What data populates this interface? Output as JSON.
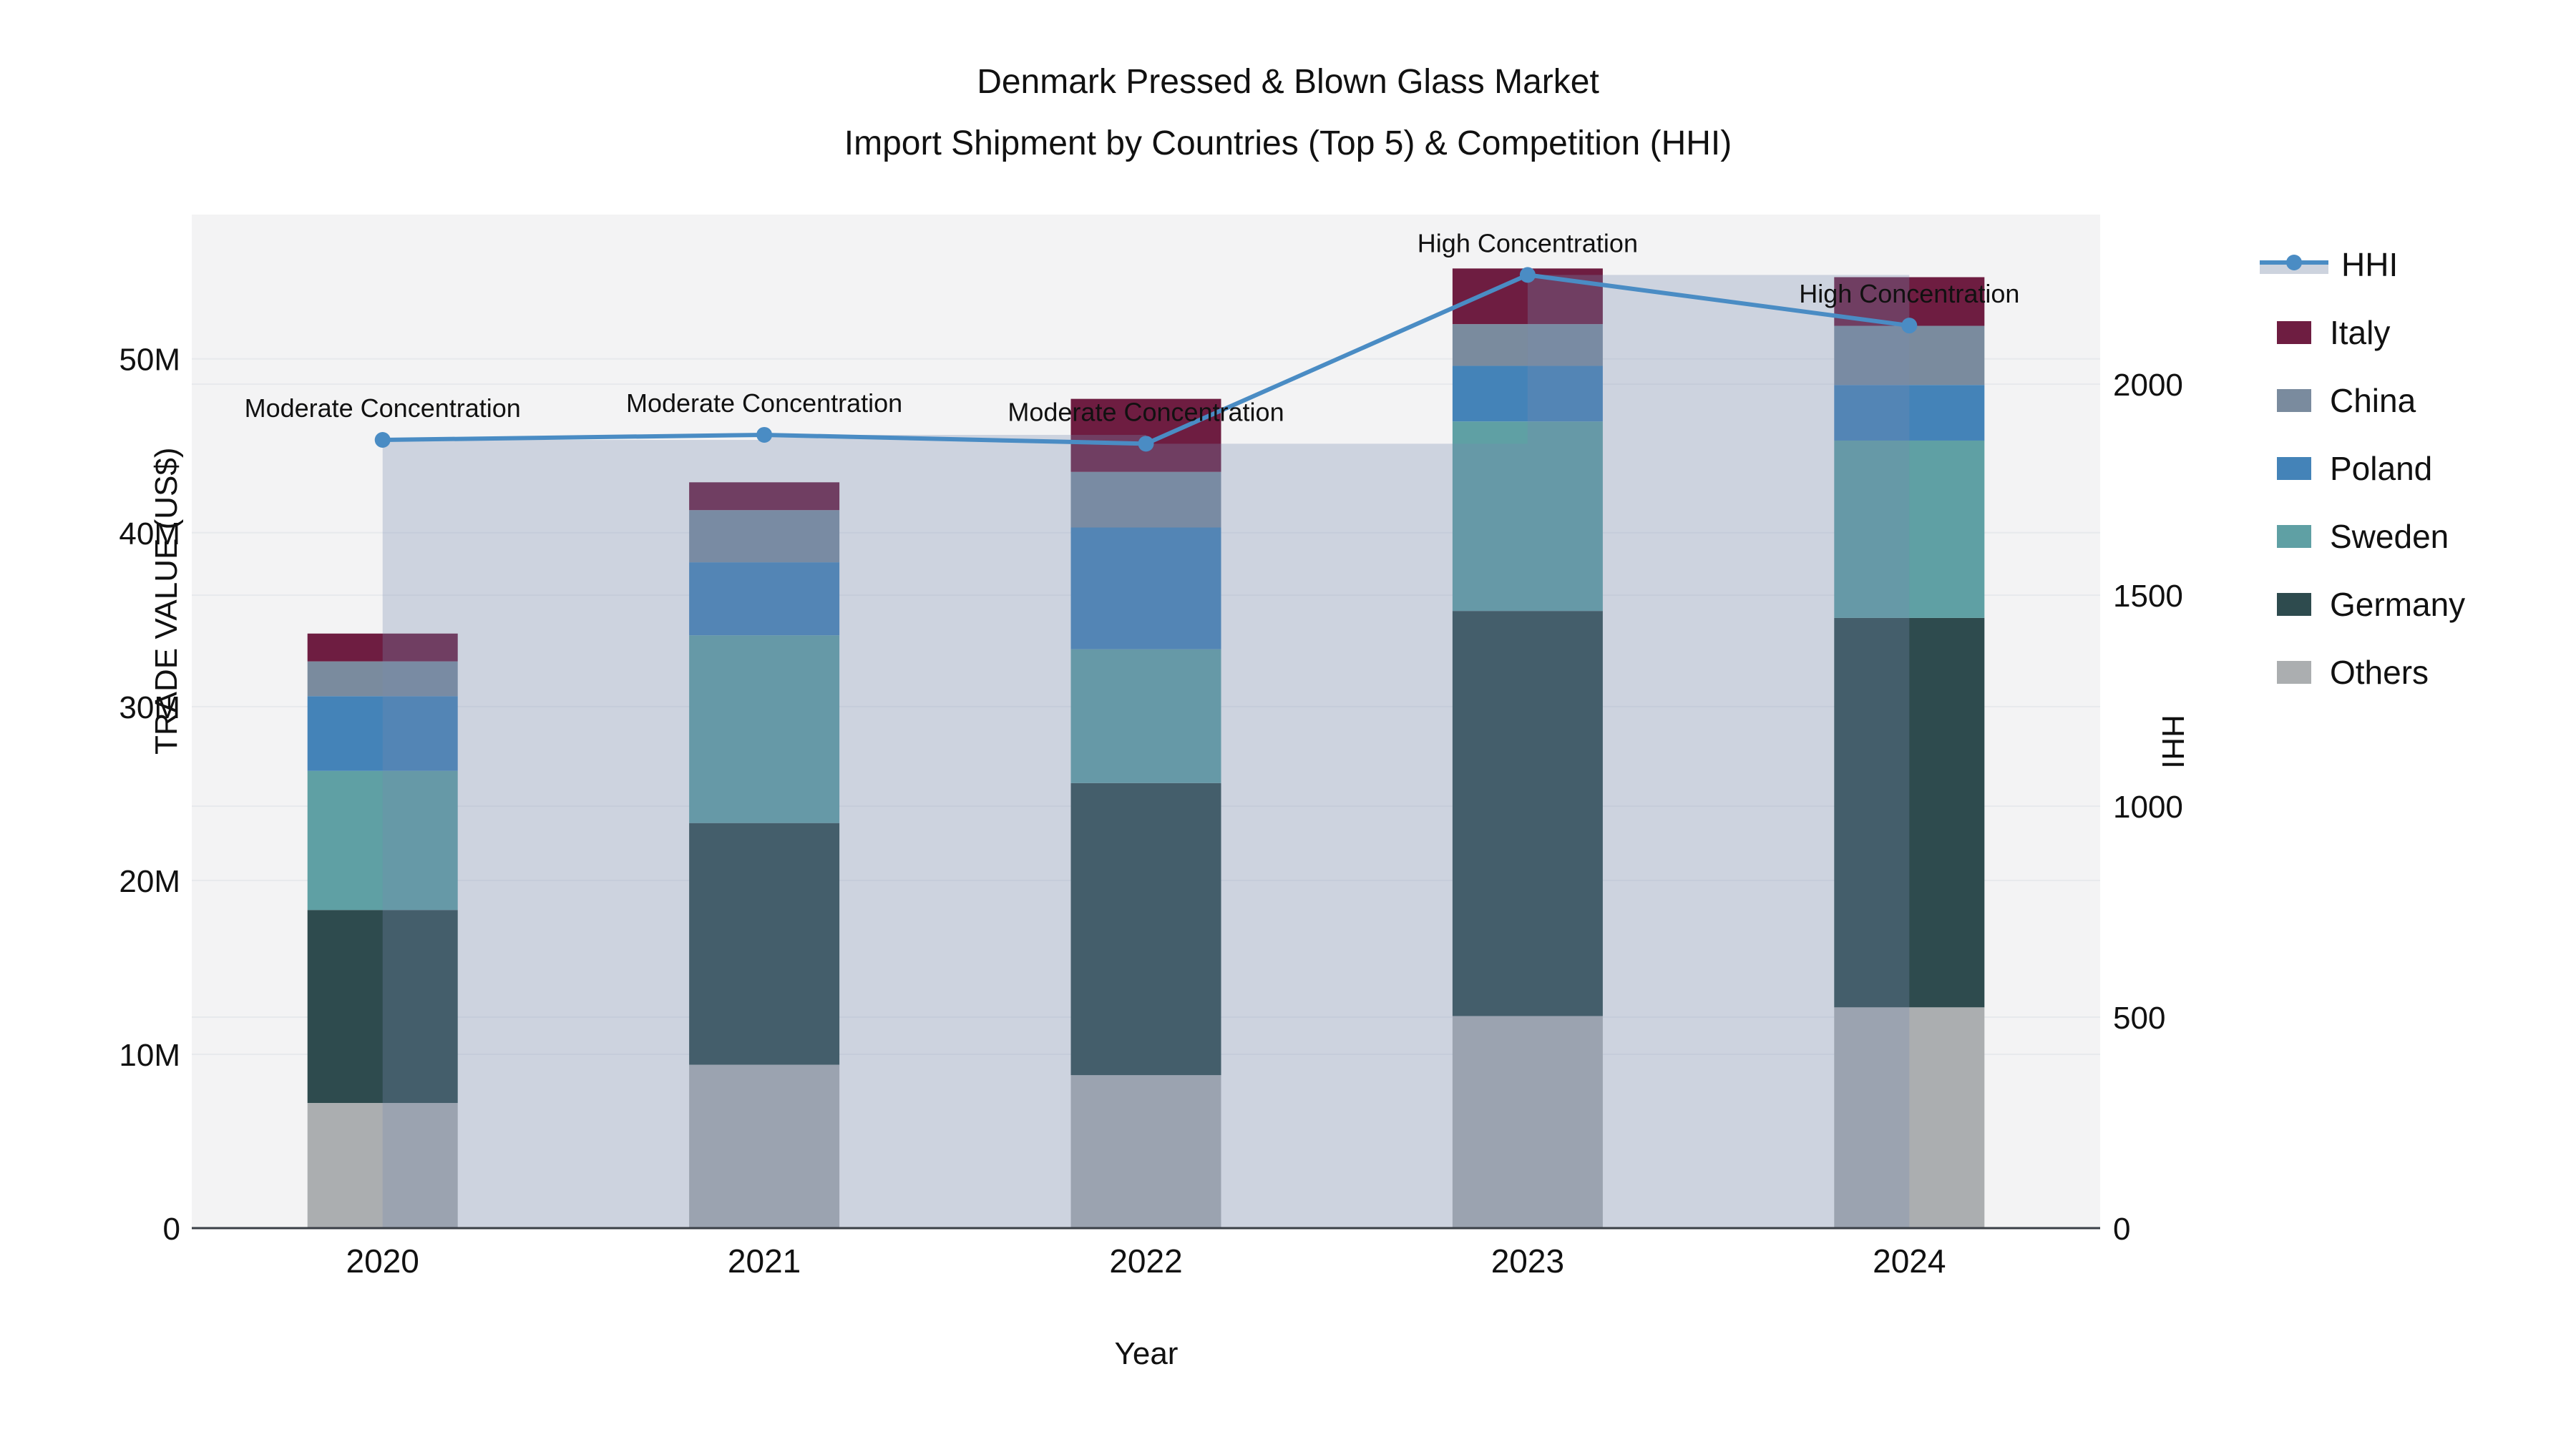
{
  "title": {
    "line1": "Denmark Pressed & Blown Glass Market",
    "line2": "Import Shipment by Countries (Top 5) & Competition (HHI)"
  },
  "legend": {
    "items": [
      {
        "label": "HHI",
        "kind": "line",
        "color": "#4A8CC4"
      },
      {
        "label": "Italy",
        "kind": "swatch",
        "color": "#6E1D41"
      },
      {
        "label": "China",
        "kind": "swatch",
        "color": "#7A8B9E"
      },
      {
        "label": "Poland",
        "kind": "swatch",
        "color": "#4483B8"
      },
      {
        "label": "Sweden",
        "kind": "swatch",
        "color": "#5FA0A4"
      },
      {
        "label": "Germany",
        "kind": "swatch",
        "color": "#2E4B4E"
      },
      {
        "label": "Others",
        "kind": "swatch",
        "color": "#ABAEB0"
      }
    ]
  },
  "chart_data": {
    "type": "combo-stacked-bar-line",
    "x_categories": [
      "2020",
      "2021",
      "2022",
      "2023",
      "2024"
    ],
    "x_title": "Year",
    "bar_value_unit": "Million US$",
    "series": [
      {
        "name": "Others",
        "color": "#ABAEB0",
        "values": [
          7.2,
          9.4,
          8.8,
          12.2,
          12.7
        ]
      },
      {
        "name": "Germany",
        "color": "#2E4B4E",
        "values": [
          11.1,
          13.9,
          16.8,
          23.3,
          22.4
        ]
      },
      {
        "name": "Sweden",
        "color": "#5FA0A4",
        "values": [
          8.0,
          10.8,
          7.7,
          10.9,
          10.2
        ]
      },
      {
        "name": "Poland",
        "color": "#4483B8",
        "values": [
          4.3,
          4.2,
          7.0,
          3.2,
          3.2
        ]
      },
      {
        "name": "China",
        "color": "#7A8B9E",
        "values": [
          2.0,
          3.0,
          3.2,
          2.4,
          3.4
        ]
      },
      {
        "name": "Italy",
        "color": "#6E1D41",
        "values": [
          1.6,
          1.6,
          4.2,
          3.2,
          2.8
        ]
      }
    ],
    "bar_totals": [
      34.2,
      42.9,
      47.7,
      55.2,
      54.7
    ],
    "line_series": {
      "name": "HHI",
      "color": "#4A8CC4",
      "area_fill": "rgba(120,140,175,0.30)",
      "values": [
        1868,
        1880,
        1859,
        2259,
        2139
      ]
    },
    "annotations": [
      {
        "x": "2020",
        "text": "Moderate Concentration"
      },
      {
        "x": "2021",
        "text": "Moderate Concentration"
      },
      {
        "x": "2022",
        "text": "Moderate Concentration"
      },
      {
        "x": "2023",
        "text": "High Concentration"
      },
      {
        "x": "2024",
        "text": "High Concentration"
      }
    ],
    "y_left": {
      "title": "TRADE VALUE (US$)",
      "ticks": [
        0,
        10,
        20,
        30,
        40,
        50
      ],
      "tick_labels": [
        "0",
        "10M",
        "20M",
        "30M",
        "40M",
        "50M"
      ],
      "range": [
        0,
        58.3
      ]
    },
    "y_right": {
      "title": "HHI",
      "ticks": [
        0,
        500,
        1000,
        1500,
        2000
      ],
      "tick_labels": [
        "0",
        "500",
        "1000",
        "1500",
        "2000"
      ],
      "range": [
        0,
        2402
      ]
    },
    "grid": true,
    "legend_position": "right",
    "layout_colors": {
      "plot_background": "#F3F3F4",
      "grid_color": "#E7E9EC",
      "axis_line_color": "#3A3F46",
      "text_color": "#111111"
    }
  }
}
